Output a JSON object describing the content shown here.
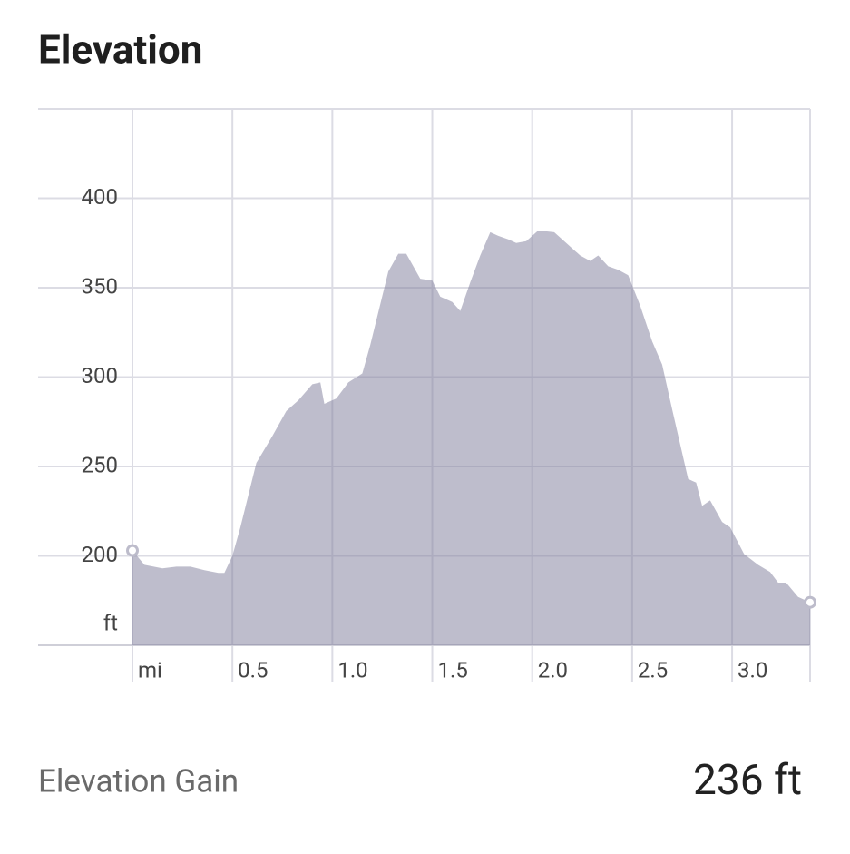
{
  "chart_data": {
    "type": "area",
    "title": "Elevation",
    "y_label": "ft",
    "x": [
      0,
      0.06,
      0.15,
      0.22,
      0.29,
      0.36,
      0.43,
      0.46,
      0.5,
      0.54,
      0.62,
      0.7,
      0.77,
      0.83,
      0.9,
      0.94,
      0.96,
      1.02,
      1.08,
      1.15,
      1.19,
      1.28,
      1.33,
      1.37,
      1.44,
      1.5,
      1.54,
      1.6,
      1.64,
      1.69,
      1.74,
      1.79,
      1.83,
      1.88,
      1.92,
      1.97,
      2.03,
      2.11,
      2.17,
      2.24,
      2.29,
      2.33,
      2.38,
      2.43,
      2.48,
      2.54,
      2.6,
      2.65,
      2.7,
      2.78,
      2.82,
      2.85,
      2.89,
      2.95,
      2.99,
      3.06,
      3.13,
      3.19,
      3.23,
      3.27,
      3.33,
      3.39
    ],
    "series": [
      {
        "color": "#7d7b99",
        "values": [
          203,
          195,
          193,
          194,
          194,
          192,
          190.5,
          190.5,
          200,
          216,
          252,
          267,
          281,
          287,
          296,
          297,
          285,
          288,
          297,
          302,
          318,
          359,
          369,
          369,
          355,
          354,
          345,
          342,
          337,
          353,
          368,
          381,
          379,
          377,
          375,
          376,
          382,
          381,
          375,
          368,
          365,
          368,
          362,
          360,
          357,
          340,
          320,
          307,
          282,
          243,
          241,
          228,
          231,
          219,
          216,
          201,
          195,
          191,
          185,
          185,
          177,
          174
        ]
      }
    ],
    "xlim": [
      0,
      3.39
    ],
    "ylim": [
      150,
      450
    ],
    "xticks": [
      {
        "value": 0,
        "label": "mi"
      },
      0.5,
      {
        "value": 1,
        "label": "1.0"
      },
      1.5,
      {
        "value": 2,
        "label": "2.0"
      },
      2.5,
      {
        "value": 3,
        "label": "3.0"
      }
    ],
    "yticks": [
      200,
      250,
      300,
      350,
      400
    ],
    "grid": true,
    "end_markers": true
  },
  "summary": {
    "label": "Elevation Gain",
    "value": "236 ft"
  }
}
